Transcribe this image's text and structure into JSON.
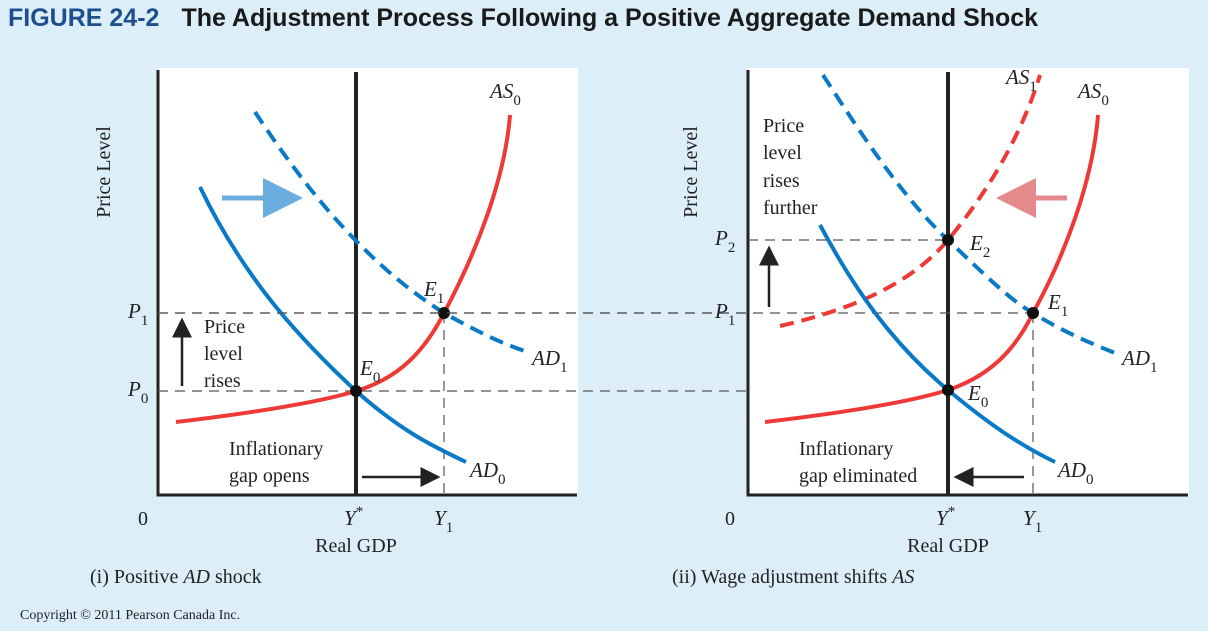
{
  "figure": {
    "number": "FIGURE 24-2",
    "title": "The Adjustment Process Following a Positive Aggregate Demand Shock"
  },
  "colors": {
    "ad": "#0a7ac6",
    "as": "#ee3a36",
    "ad_arrow": "#6aaee0",
    "as_arrow": "#e58a8c",
    "background": "#dcf0fa"
  },
  "panel1": {
    "caption_prefix": "(i) Positive ",
    "caption_ad": "AD",
    "caption_suffix": " shock",
    "ylabel": "Price Level",
    "xlabel": "Real GDP",
    "origin": "0",
    "ystar": "Y",
    "ystar_sup": "*",
    "y1": "Y",
    "y1_sub": "1",
    "p1": "P",
    "p1_sub": "1",
    "p0": "P",
    "p0_sub": "0",
    "as0": "AS",
    "as0_sub": "0",
    "ad0": "AD",
    "ad0_sub": "0",
    "ad1": "AD",
    "ad1_sub": "1",
    "e0": "E",
    "e0_sub": "0",
    "e1": "E",
    "e1_sub": "1",
    "note": [
      "Price",
      "level",
      "rises"
    ],
    "gap": [
      "Inflationary",
      "gap opens"
    ]
  },
  "panel2": {
    "caption_prefix": "(ii) Wage adjustment shifts ",
    "caption_as": "AS",
    "ylabel": "Price Level",
    "xlabel": "Real GDP",
    "origin": "0",
    "ystar": "Y",
    "ystar_sup": "*",
    "y1": "Y",
    "y1_sub": "1",
    "p2": "P",
    "p2_sub": "2",
    "p1": "P",
    "p1_sub": "1",
    "as0": "AS",
    "as0_sub": "0",
    "as1": "AS",
    "as1_sub": "1",
    "ad0": "AD",
    "ad0_sub": "0",
    "ad1": "AD",
    "ad1_sub": "1",
    "e0": "E",
    "e0_sub": "0",
    "e1": "E",
    "e1_sub": "1",
    "e2": "E",
    "e2_sub": "2",
    "note": [
      "Price",
      "level",
      "rises",
      "further"
    ],
    "gap": [
      "Inflationary",
      "gap eliminated"
    ]
  },
  "copyright": "Copyright © 2011 Pearson Canada Inc."
}
